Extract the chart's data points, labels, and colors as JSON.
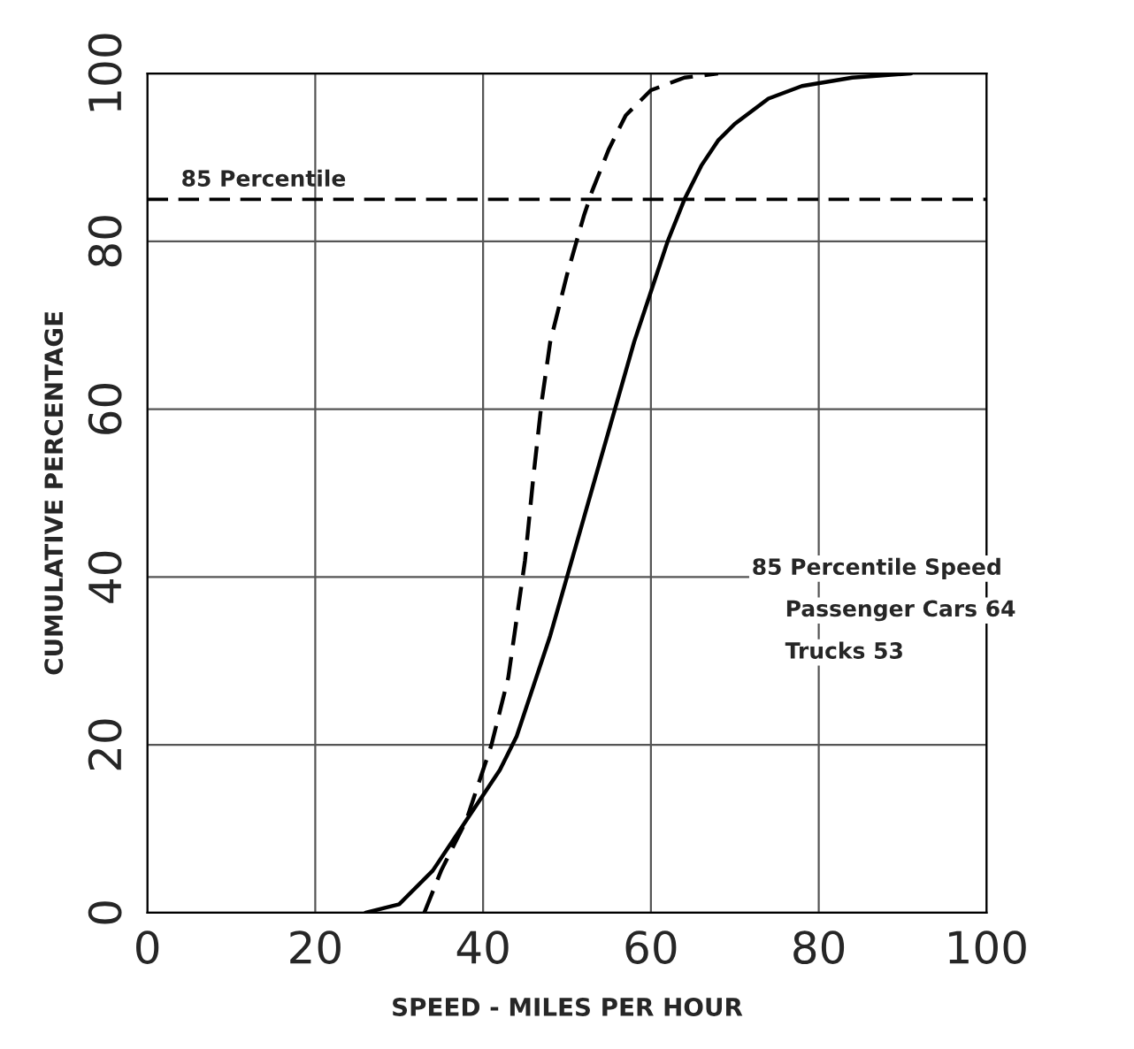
{
  "chart_data": {
    "type": "line",
    "xlabel": "SPEED - MILES PER HOUR",
    "ylabel": "CUMULATIVE PERCENTAGE",
    "xlim": [
      0,
      100
    ],
    "ylim": [
      0,
      100
    ],
    "xticks": [
      0,
      20,
      40,
      60,
      80,
      100
    ],
    "yticks": [
      0,
      20,
      40,
      60,
      80,
      100
    ],
    "grid": true,
    "marker": "none",
    "series": [
      {
        "color": "#000000",
        "line_style": "solid",
        "x": [
          26,
          30,
          34,
          38,
          42,
          44,
          46,
          48,
          50,
          52,
          54,
          56,
          58,
          60,
          62,
          64,
          66,
          68,
          70,
          74,
          78,
          84,
          91
        ],
        "values": [
          0,
          1,
          5,
          11,
          17,
          21,
          27,
          33,
          40,
          47,
          54,
          61,
          68,
          74,
          80,
          85,
          89,
          92,
          94,
          97,
          98.5,
          99.5,
          100
        ]
      },
      {
        "color": "#000000",
        "line_style": "dashed",
        "x": [
          33,
          35,
          38,
          41,
          43,
          44,
          45,
          46,
          47,
          48,
          50,
          52,
          53,
          55,
          57,
          60,
          64,
          68
        ],
        "values": [
          0,
          5,
          11,
          20,
          28,
          35,
          42,
          52,
          61,
          68,
          76,
          83,
          86,
          91,
          95,
          98,
          99.5,
          100
        ]
      }
    ],
    "ref_lines": [
      {
        "axis": "y",
        "value": 85,
        "label": "85 Percentile",
        "color": "#000000",
        "line_style": "dashed"
      }
    ],
    "annotations": [
      "85 Percentile Speed",
      "Passenger Cars 64",
      "Trucks 53"
    ]
  }
}
